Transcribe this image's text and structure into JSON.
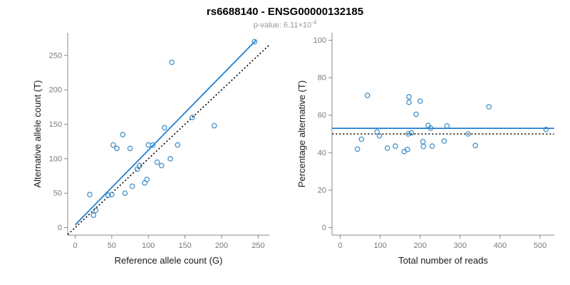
{
  "header": {
    "title": "rs6688140 - ENSG00000132185",
    "pvalue_prefix": "p-value: 6.11×10",
    "pvalue_exponent": "-4"
  },
  "style": {
    "point_color": "#3b8bc6",
    "fit_line_color": "#1f7fd2",
    "identity_line_color": "#000000",
    "axis_color": "#8a8a8a",
    "tick_label_color": "#7a7a7a",
    "axis_title_color": "#1a1a1a"
  },
  "chart_data": [
    {
      "type": "scatter",
      "name": "reference-vs-alternative",
      "xlabel": "Reference allele count (G)",
      "ylabel": "Alternative allele count (T)",
      "xlim": [
        0,
        255
      ],
      "ylim": [
        0,
        272
      ],
      "xticks": [
        0,
        50,
        100,
        150,
        200,
        250
      ],
      "yticks": [
        0,
        50,
        100,
        150,
        200,
        250
      ],
      "grid": false,
      "points": [
        [
          20,
          48
        ],
        [
          25,
          18
        ],
        [
          28,
          25
        ],
        [
          45,
          47
        ],
        [
          50,
          48
        ],
        [
          52,
          120
        ],
        [
          57,
          115
        ],
        [
          65,
          135
        ],
        [
          68,
          50
        ],
        [
          75,
          115
        ],
        [
          78,
          60
        ],
        [
          85,
          85
        ],
        [
          88,
          90
        ],
        [
          95,
          65
        ],
        [
          98,
          70
        ],
        [
          100,
          120
        ],
        [
          106,
          120
        ],
        [
          112,
          95
        ],
        [
          118,
          90
        ],
        [
          122,
          145
        ],
        [
          130,
          100
        ],
        [
          132,
          240
        ],
        [
          140,
          120
        ],
        [
          160,
          160
        ],
        [
          190,
          148
        ],
        [
          245,
          270
        ]
      ],
      "lines": [
        {
          "name": "identity-line",
          "style": "dotted",
          "color": "#000000",
          "width": 1.6,
          "from": [
            -10,
            -10
          ],
          "to": [
            265,
            265
          ]
        },
        {
          "name": "fit-line",
          "style": "solid",
          "color": "#1f7fd2",
          "width": 1.8,
          "from": [
            0,
            4
          ],
          "to": [
            247,
            272
          ]
        }
      ]
    },
    {
      "type": "scatter",
      "name": "total-reads-vs-percentage",
      "xlabel": "Total number of reads",
      "ylabel": "Percentage alternative (T)",
      "xlim": [
        0,
        515
      ],
      "ylim": [
        0,
        100
      ],
      "xticks": [
        0,
        100,
        200,
        300,
        400,
        500
      ],
      "yticks": [
        0,
        20,
        40,
        60,
        80,
        100
      ],
      "grid": false,
      "points": [
        [
          68,
          70.6
        ],
        [
          43,
          41.9
        ],
        [
          53,
          47.2
        ],
        [
          92,
          51.1
        ],
        [
          98,
          49.0
        ],
        [
          172,
          69.8
        ],
        [
          172,
          66.9
        ],
        [
          200,
          67.5
        ],
        [
          118,
          42.4
        ],
        [
          190,
          60.5
        ],
        [
          138,
          43.5
        ],
        [
          170,
          50.0
        ],
        [
          178,
          50.6
        ],
        [
          160,
          40.6
        ],
        [
          168,
          41.7
        ],
        [
          220,
          54.5
        ],
        [
          226,
          53.1
        ],
        [
          207,
          45.9
        ],
        [
          208,
          43.3
        ],
        [
          267,
          54.3
        ],
        [
          230,
          43.5
        ],
        [
          372,
          64.5
        ],
        [
          260,
          46.2
        ],
        [
          320,
          50.0
        ],
        [
          338,
          43.8
        ],
        [
          515,
          52.4
        ]
      ],
      "lines": [
        {
          "name": "expected-line",
          "style": "dotted",
          "color": "#000000",
          "width": 1.6,
          "from": [
            -20,
            50
          ],
          "to": [
            535,
            50
          ]
        },
        {
          "name": "mean-line",
          "style": "solid",
          "color": "#1f7fd2",
          "width": 1.8,
          "from": [
            -20,
            53
          ],
          "to": [
            535,
            53
          ]
        }
      ]
    }
  ]
}
